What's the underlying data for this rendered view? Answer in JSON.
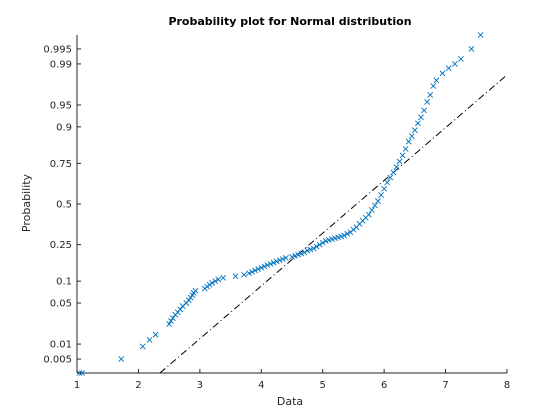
{
  "chart_data": {
    "type": "scatter",
    "title": "Probability plot for Normal distribution",
    "xlabel": "Data",
    "ylabel": "Probability",
    "xlim": [
      1,
      8
    ],
    "y_scale": "normal-probability",
    "y_range_p": [
      0.0025,
      0.9975
    ],
    "x_ticks": [
      1,
      2,
      3,
      4,
      5,
      6,
      7,
      8
    ],
    "x_tick_labels": [
      "1",
      "2",
      "3",
      "4",
      "5",
      "6",
      "7",
      "8"
    ],
    "y_ticks": [
      0.005,
      0.01,
      0.05,
      0.1,
      0.25,
      0.5,
      0.75,
      0.9,
      0.95,
      0.99,
      0.995
    ],
    "y_tick_labels": [
      "0.005",
      "0.01",
      "0.05",
      "0.1",
      "0.25",
      "0.5",
      "0.75",
      "0.9",
      "0.95",
      "0.99",
      "0.995"
    ],
    "grid": false,
    "marker": "x",
    "marker_color": "#0072BD",
    "reference_line": {
      "style": "dash-dot",
      "color": "#000000",
      "points": [
        [
          2.35,
          0.0025
        ],
        [
          8.0,
          0.984
        ]
      ]
    },
    "series": [
      {
        "points": [
          [
            1.04,
            0.0025
          ],
          [
            1.08,
            0.0025
          ],
          [
            1.72,
            0.005
          ],
          [
            2.07,
            0.009
          ],
          [
            2.18,
            0.012
          ],
          [
            2.28,
            0.015
          ],
          [
            2.5,
            0.023
          ],
          [
            2.53,
            0.026
          ],
          [
            2.56,
            0.029
          ],
          [
            2.6,
            0.033
          ],
          [
            2.64,
            0.036
          ],
          [
            2.68,
            0.04
          ],
          [
            2.72,
            0.045
          ],
          [
            2.78,
            0.05
          ],
          [
            2.82,
            0.055
          ],
          [
            2.85,
            0.06
          ],
          [
            2.88,
            0.065
          ],
          [
            2.9,
            0.07
          ],
          [
            2.93,
            0.075
          ],
          [
            3.08,
            0.08
          ],
          [
            3.12,
            0.085
          ],
          [
            3.16,
            0.09
          ],
          [
            3.2,
            0.095
          ],
          [
            3.25,
            0.1
          ],
          [
            3.3,
            0.105
          ],
          [
            3.38,
            0.11
          ],
          [
            3.58,
            0.115
          ],
          [
            3.72,
            0.12
          ],
          [
            3.8,
            0.125
          ],
          [
            3.85,
            0.13
          ],
          [
            3.9,
            0.135
          ],
          [
            3.95,
            0.14
          ],
          [
            4.0,
            0.145
          ],
          [
            4.05,
            0.15
          ],
          [
            4.1,
            0.155
          ],
          [
            4.15,
            0.16
          ],
          [
            4.2,
            0.165
          ],
          [
            4.25,
            0.17
          ],
          [
            4.3,
            0.175
          ],
          [
            4.35,
            0.18
          ],
          [
            4.4,
            0.185
          ],
          [
            4.5,
            0.19
          ],
          [
            4.55,
            0.195
          ],
          [
            4.6,
            0.2
          ],
          [
            4.65,
            0.205
          ],
          [
            4.7,
            0.21
          ],
          [
            4.75,
            0.22
          ],
          [
            4.8,
            0.225
          ],
          [
            4.85,
            0.23
          ],
          [
            4.9,
            0.24
          ],
          [
            4.95,
            0.25
          ],
          [
            5.0,
            0.26
          ],
          [
            5.05,
            0.27
          ],
          [
            5.1,
            0.275
          ],
          [
            5.15,
            0.28
          ],
          [
            5.2,
            0.285
          ],
          [
            5.25,
            0.29
          ],
          [
            5.3,
            0.295
          ],
          [
            5.35,
            0.3
          ],
          [
            5.4,
            0.31
          ],
          [
            5.45,
            0.32
          ],
          [
            5.5,
            0.335
          ],
          [
            5.55,
            0.35
          ],
          [
            5.6,
            0.37
          ],
          [
            5.65,
            0.39
          ],
          [
            5.7,
            0.41
          ],
          [
            5.75,
            0.43
          ],
          [
            5.8,
            0.46
          ],
          [
            5.85,
            0.49
          ],
          [
            5.9,
            0.52
          ],
          [
            5.95,
            0.56
          ],
          [
            6.0,
            0.6
          ],
          [
            6.05,
            0.64
          ],
          [
            6.1,
            0.67
          ],
          [
            6.15,
            0.7
          ],
          [
            6.2,
            0.73
          ],
          [
            6.25,
            0.76
          ],
          [
            6.3,
            0.79
          ],
          [
            6.35,
            0.82
          ],
          [
            6.4,
            0.85
          ],
          [
            6.45,
            0.87
          ],
          [
            6.5,
            0.89
          ],
          [
            6.55,
            0.91
          ],
          [
            6.6,
            0.925
          ],
          [
            6.65,
            0.94
          ],
          [
            6.7,
            0.955
          ],
          [
            6.75,
            0.965
          ],
          [
            6.8,
            0.975
          ],
          [
            6.85,
            0.98
          ],
          [
            6.95,
            0.985
          ],
          [
            7.05,
            0.988
          ],
          [
            7.15,
            0.99
          ],
          [
            7.25,
            0.992
          ],
          [
            7.42,
            0.995
          ],
          [
            7.57,
            0.9975
          ]
        ]
      }
    ]
  }
}
